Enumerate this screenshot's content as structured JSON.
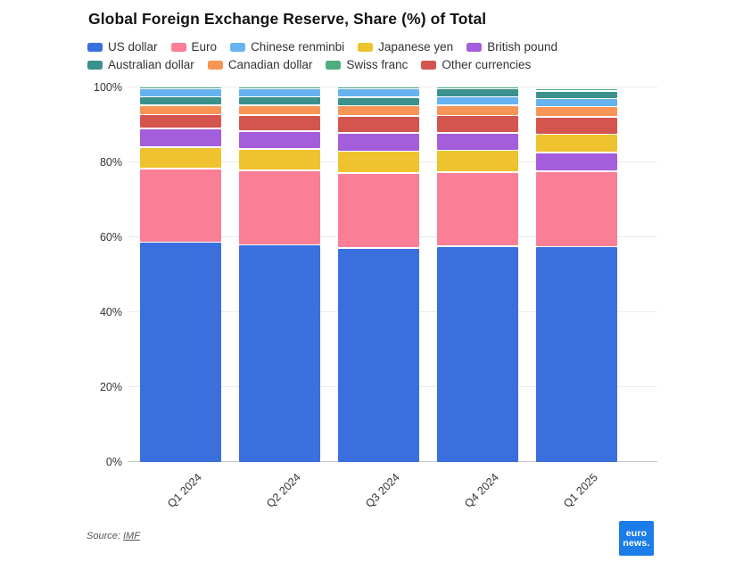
{
  "title": "Global Foreign Exchange Reserve, Share (%) of Total",
  "source": {
    "prefix": "Source:",
    "link_label": "IMF"
  },
  "logo": {
    "line1": "euro",
    "line2": "news."
  },
  "chart_data": {
    "type": "bar",
    "stacked": true,
    "stack_order": "largest-at-bottom-per-bar",
    "unit": "%",
    "title": "Global Foreign Exchange Reserve, Share (%) of Total",
    "categories": [
      "Q1 2024",
      "Q2 2024",
      "Q3 2024",
      "Q4 2024",
      "Q1 2025"
    ],
    "series": [
      {
        "name": "US dollar",
        "color": "#3b6fdd",
        "values": [
          58.9,
          58.2,
          57.4,
          57.8,
          57.7
        ]
      },
      {
        "name": "Euro",
        "color": "#fa7e96",
        "values": [
          19.7,
          19.8,
          20.0,
          19.8,
          20.1
        ]
      },
      {
        "name": "Chinese renminbi",
        "color": "#67b3f0",
        "values": [
          2.1,
          2.1,
          2.2,
          2.2,
          2.1
        ]
      },
      {
        "name": "Japanese yen",
        "color": "#efc32f",
        "values": [
          5.7,
          5.7,
          5.8,
          5.8,
          4.9
        ]
      },
      {
        "name": "British pound",
        "color": "#a45ddb",
        "values": [
          4.9,
          4.9,
          4.9,
          4.7,
          5.0
        ]
      },
      {
        "name": "Australian dollar",
        "color": "#3a918d",
        "values": [
          2.2,
          2.2,
          2.3,
          2.1,
          2.0
        ]
      },
      {
        "name": "Canadian dollar",
        "color": "#f79556",
        "values": [
          2.6,
          2.7,
          2.7,
          2.8,
          2.7
        ]
      },
      {
        "name": "Swiss franc",
        "color": "#4fae7e",
        "values": [
          0.2,
          0.2,
          0.2,
          0.2,
          0.8
        ]
      },
      {
        "name": "Other currencies",
        "color": "#d4544e",
        "values": [
          3.7,
          4.2,
          4.5,
          4.6,
          4.7
        ]
      }
    ],
    "y_axis": {
      "range": [
        0,
        100
      ],
      "tick_values": [
        0,
        20,
        40,
        60,
        80,
        100
      ],
      "tick_suffix": "%",
      "grid": true
    },
    "legend": {
      "position": "top",
      "row_split": 5
    }
  }
}
